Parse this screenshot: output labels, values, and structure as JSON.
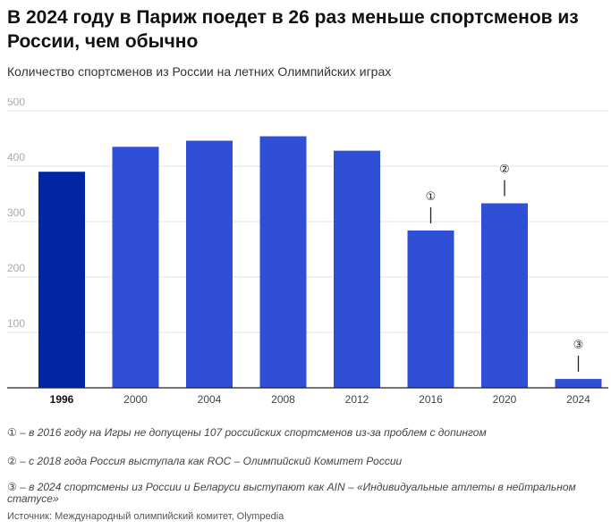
{
  "header": {
    "title": "В 2024 году в Париж поедет в 26 раз меньше спортсменов из России, чем обычно",
    "subtitle": "Количество спортсменов из России на летних Олимпийских играх"
  },
  "notes": [
    "① – в 2016 году на Игры не допущены 107 российских спортсменов из-за проблем с допингом",
    "② – с 2018 года Россия выступала как ROC – Олимпийский Комитет России",
    "③ – в 2024 спортсмены из России и Беларуси выступают как AIN – «Индивидуальные атлеты в нейтральном статусе»"
  ],
  "source": "Источник: Международный олимпийский комитет, Olympedia",
  "colors": {
    "highlight": "#0026a6",
    "bar": "#2f4fd6",
    "grid": "#e3e3e3",
    "axis": "#222222"
  },
  "chart_data": {
    "type": "bar",
    "categories": [
      "1996",
      "2000",
      "2004",
      "2008",
      "2012",
      "2016",
      "2020",
      "2024"
    ],
    "values": [
      390,
      435,
      446,
      454,
      428,
      284,
      333,
      16
    ],
    "highlight_category": "1996",
    "annotations": [
      {
        "category": "2016",
        "label": "①"
      },
      {
        "category": "2020",
        "label": "②"
      },
      {
        "category": "2024",
        "label": "③"
      }
    ],
    "ylim": [
      0,
      500
    ],
    "yticks": [
      "100",
      "200",
      "300",
      "400",
      "500"
    ],
    "grid": true,
    "legend": "none"
  }
}
